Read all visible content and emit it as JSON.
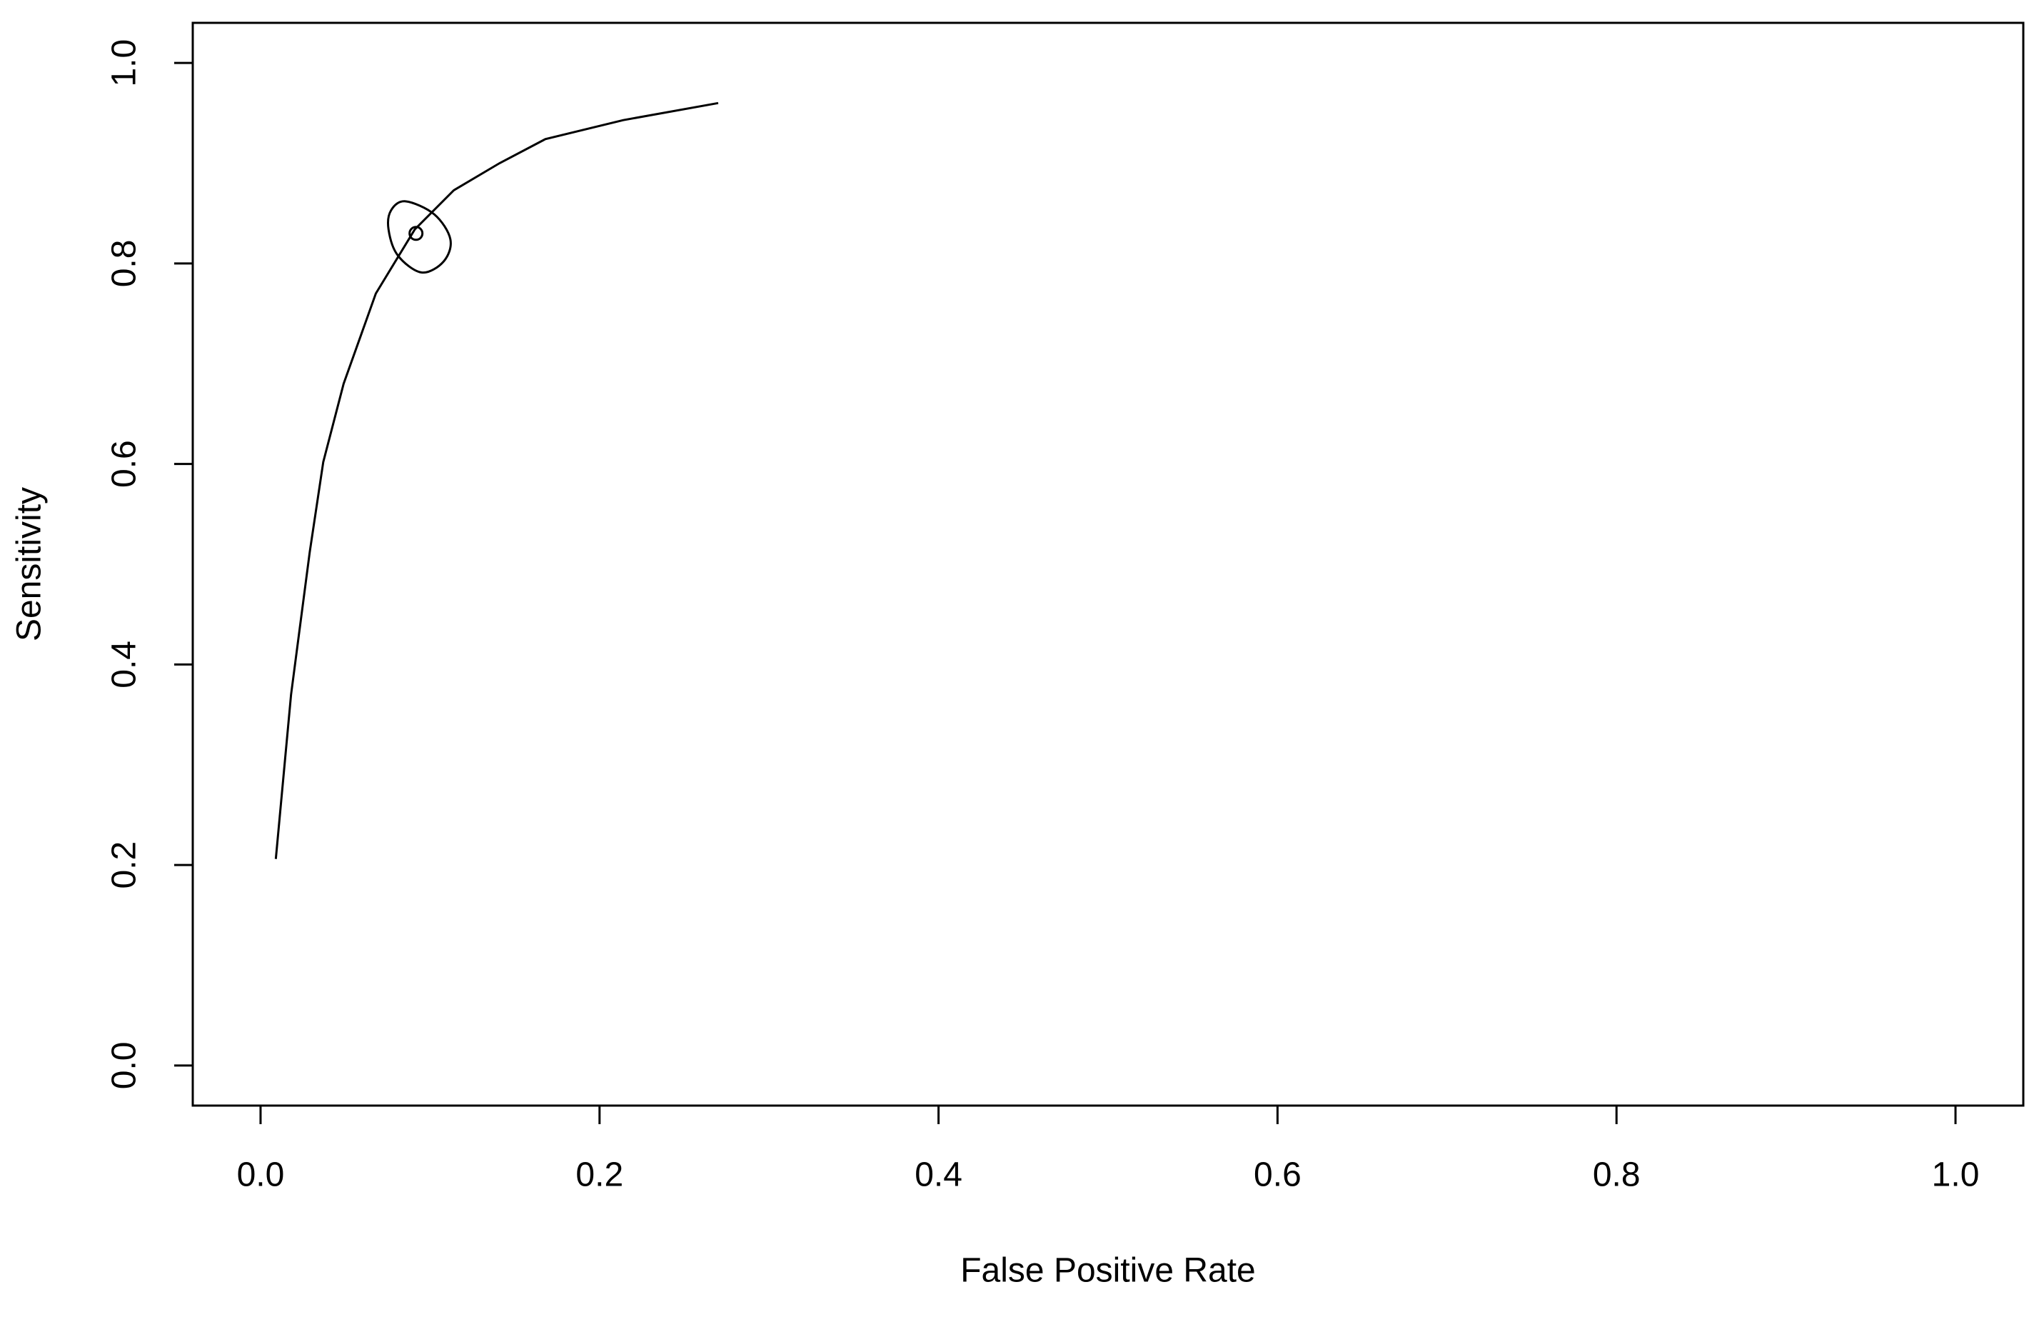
{
  "chart_data": {
    "type": "line",
    "xlabel": "False Positive Rate",
    "ylabel": "Sensitivity",
    "xlim": [
      -0.04,
      1.04
    ],
    "ylim": [
      -0.04,
      1.04
    ],
    "xticks": [
      {
        "value": 0,
        "label": "0.0"
      },
      0.2,
      0.4,
      0.6,
      0.8,
      {
        "value": 1,
        "label": "1.0"
      }
    ],
    "yticks": [
      {
        "value": 0,
        "label": "0.0"
      },
      0.2,
      0.4,
      0.6,
      0.8,
      {
        "value": 1,
        "label": "1.0"
      }
    ],
    "grid": false,
    "series": [
      {
        "mode": "line",
        "color": "#000000",
        "x": [
          0.009,
          0.018,
          0.029,
          0.037,
          0.049,
          0.068,
          0.091,
          0.114,
          0.141,
          0.168,
          0.214,
          0.27
        ],
        "values": [
          0.206,
          0.37,
          0.512,
          0.602,
          0.68,
          0.77,
          0.834,
          0.873,
          0.9,
          0.924,
          0.943,
          0.96
        ]
      },
      {
        "mode": "closed-line",
        "color": "#000000",
        "x": [
          0.0855,
          0.1025,
          0.112,
          0.108,
          0.095,
          0.081,
          0.0755,
          0.077
        ],
        "values": [
          0.862,
          0.849,
          0.824,
          0.802,
          0.791,
          0.808,
          0.834,
          0.853
        ]
      },
      {
        "mode": "point",
        "color": "#000000",
        "x": [
          0.0917
        ],
        "values": [
          0.83
        ]
      }
    ]
  }
}
